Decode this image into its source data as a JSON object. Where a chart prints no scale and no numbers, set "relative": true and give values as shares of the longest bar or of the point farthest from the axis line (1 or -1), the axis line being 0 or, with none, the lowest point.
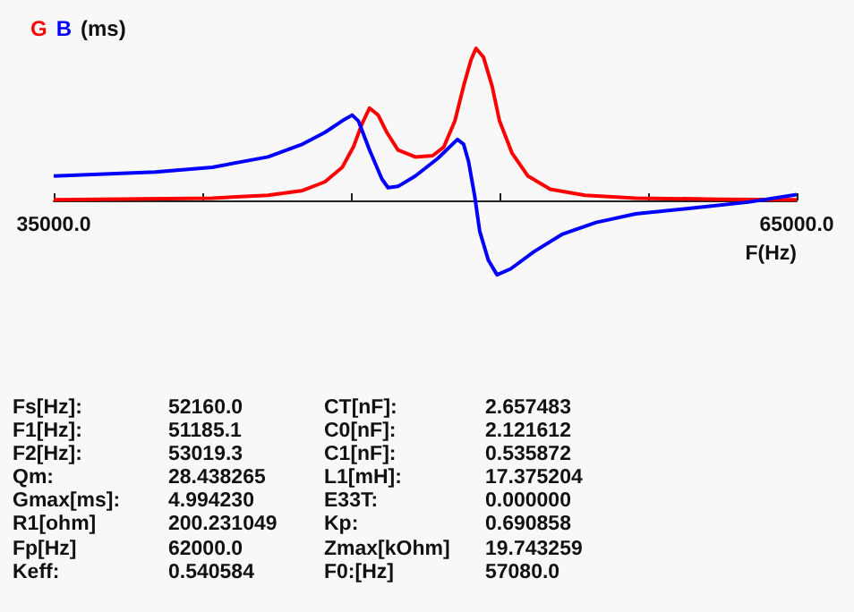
{
  "chart_data": {
    "type": "line",
    "relative": true,
    "marker": "none",
    "ylabel": "(ms)",
    "xlabel": "F(Hz)",
    "xlim": [
      35000,
      65000
    ],
    "xticks": [
      {
        "value": 35000,
        "label": "35000.0"
      },
      {
        "value": 41000,
        "label": null
      },
      {
        "value": 47000,
        "label": null
      },
      {
        "value": 53000,
        "label": null
      },
      {
        "value": 59000,
        "label": null
      },
      {
        "value": 65000,
        "label": "65000.0"
      }
    ],
    "series": [
      {
        "name": "G",
        "color": "#ff0000",
        "x": [
          35000,
          41400,
          43650,
          45050,
          45950,
          46650,
          47100,
          47450,
          47750,
          48100,
          48450,
          48900,
          49600,
          50300,
          50750,
          51200,
          51550,
          51850,
          52050,
          52350,
          52700,
          53000,
          53500,
          54150,
          55050,
          56450,
          58500,
          61900,
          65000
        ],
        "values": [
          0.004,
          0.015,
          0.034,
          0.065,
          0.122,
          0.218,
          0.351,
          0.504,
          0.607,
          0.561,
          0.447,
          0.332,
          0.286,
          0.294,
          0.351,
          0.523,
          0.752,
          0.924,
          1,
          0.943,
          0.752,
          0.523,
          0.313,
          0.16,
          0.073,
          0.034,
          0.015,
          0.008,
          0.004
        ]
      },
      {
        "name": "B",
        "color": "#0000ff",
        "x": [
          35000,
          39100,
          41400,
          43650,
          45050,
          45950,
          46650,
          47050,
          47300,
          47750,
          48250,
          48500,
          48900,
          49600,
          50500,
          51300,
          51550,
          51750,
          52000,
          52200,
          52550,
          52900,
          53450,
          54400,
          55550,
          56900,
          58500,
          60800,
          63050,
          65000
        ],
        "values": [
          0.16,
          0.187,
          0.218,
          0.286,
          0.37,
          0.447,
          0.523,
          0.561,
          0.523,
          0.332,
          0.141,
          0.084,
          0.092,
          0.16,
          0.275,
          0.401,
          0.37,
          0.256,
          0.027,
          -0.202,
          -0.393,
          -0.489,
          -0.45,
          -0.336,
          -0.221,
          -0.145,
          -0.088,
          -0.05,
          -0.011,
          0.038
        ]
      }
    ],
    "annotations": [
      "Fs[Hz]:",
      "52160.0",
      "CT[nF]:",
      "2.657483",
      "F1[Hz]:",
      "51185.1",
      "C0[nF]:",
      "2.121612",
      "F2[Hz]:",
      "53019.3",
      "C1[nF]:",
      "0.535872",
      "Qm:",
      "28.438265",
      "L1[mH]:",
      "17.375204",
      "Gmax[ms]:",
      "4.994230",
      "E33T:",
      "0.000000",
      "R1[ohm]",
      "200.231049",
      "Kp:",
      "0.690858",
      "Fp[Hz]",
      "62000.0",
      "Zmax[kOhm]",
      "19.743259",
      "Keff:",
      "0.540584",
      "F0:[Hz]",
      "57080.0"
    ]
  }
}
